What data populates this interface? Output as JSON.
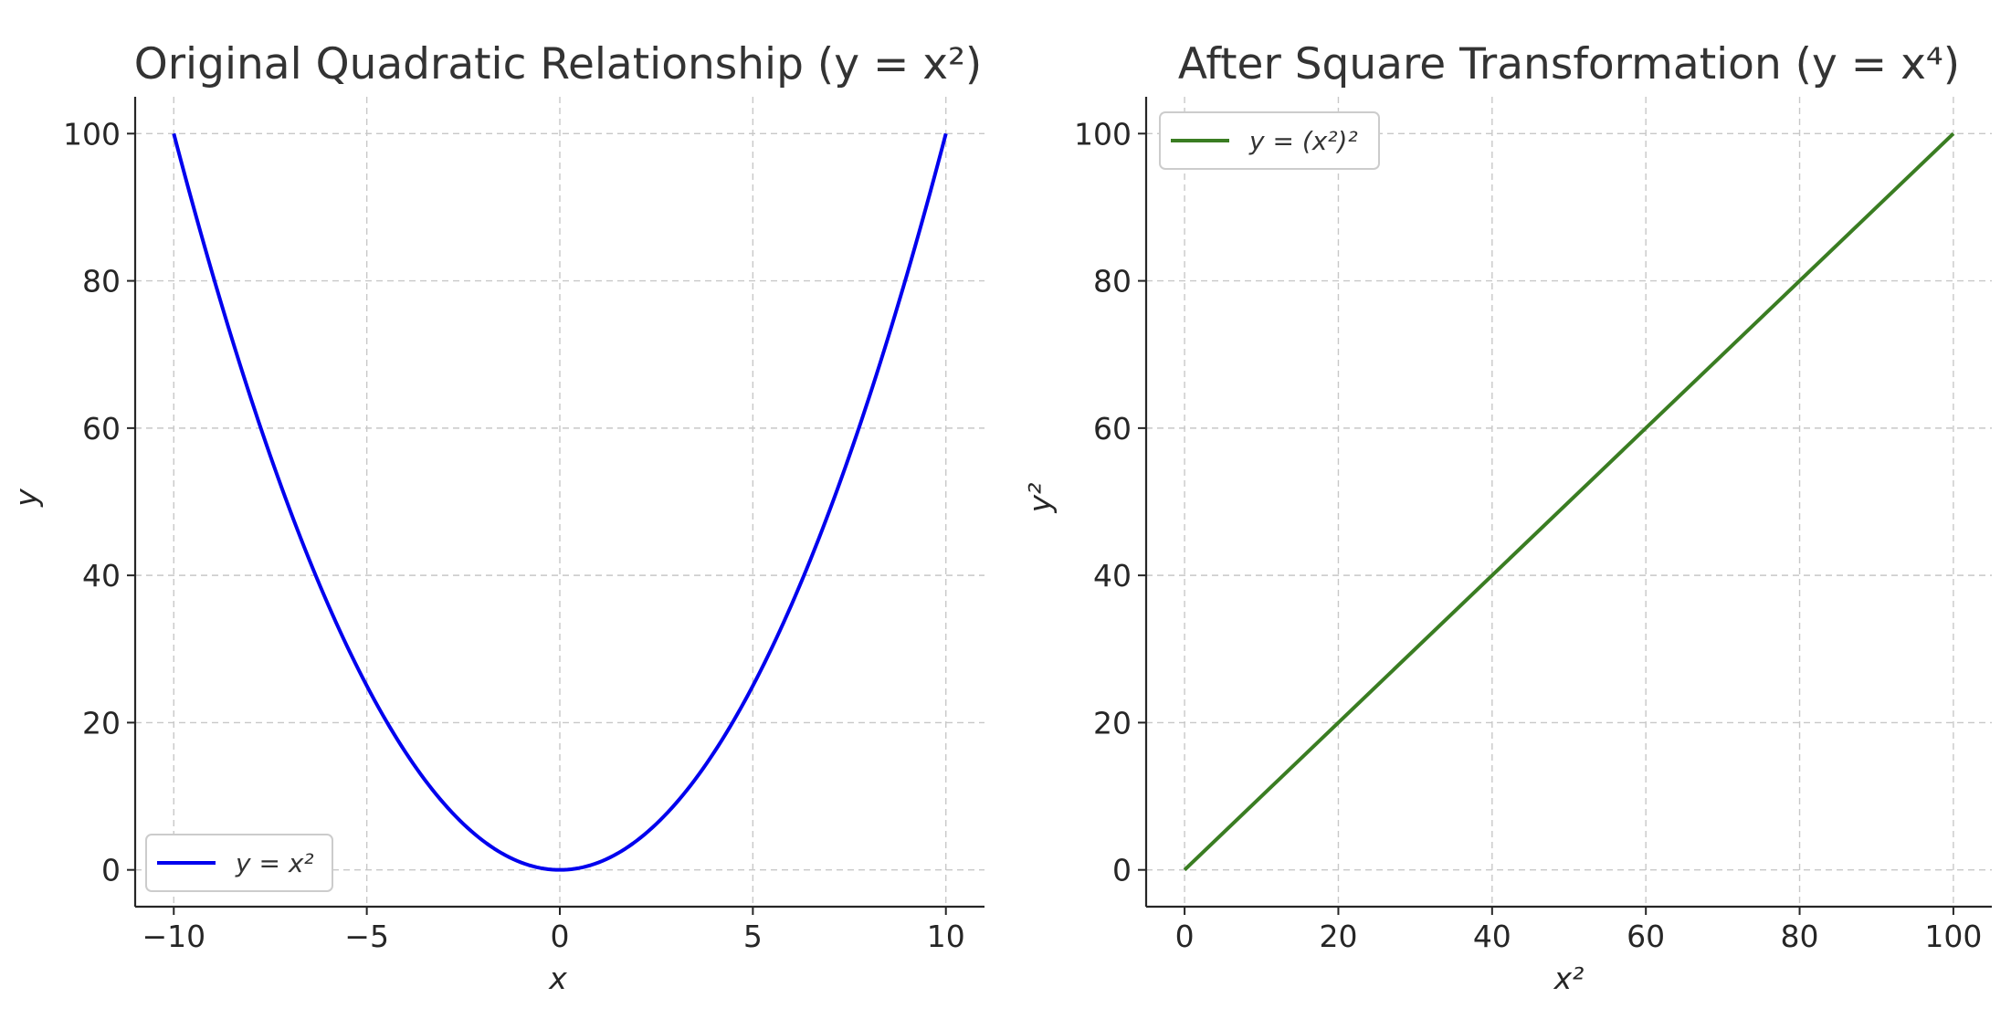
{
  "chart_data": [
    {
      "type": "line",
      "title": "Original Quadratic Relationship (y = x²)",
      "xlabel": "x",
      "ylabel": "y",
      "xlim": [
        -11,
        11
      ],
      "ylim": [
        -5,
        105
      ],
      "xticks": [
        -10,
        -5,
        0,
        5,
        10
      ],
      "xtick_labels": [
        "−10",
        "−5",
        "0",
        "5",
        "10"
      ],
      "yticks": [
        0,
        20,
        40,
        60,
        80,
        100
      ],
      "ytick_labels": [
        "0",
        "20",
        "40",
        "60",
        "80",
        "100"
      ],
      "grid": true,
      "legend_position": "lower-left",
      "series": [
        {
          "name": "y = x²",
          "color": "#0000ee",
          "x": [
            -10,
            -9,
            -8,
            -7,
            -6,
            -5,
            -4,
            -3,
            -2,
            -1,
            0,
            1,
            2,
            3,
            4,
            5,
            6,
            7,
            8,
            9,
            10
          ],
          "y": [
            100,
            81,
            64,
            49,
            36,
            25,
            16,
            9,
            4,
            1,
            0,
            1,
            4,
            9,
            16,
            25,
            36,
            49,
            64,
            81,
            100
          ]
        }
      ]
    },
    {
      "type": "line",
      "title": "After Square Transformation (y = x⁴)",
      "xlabel": "x²",
      "ylabel": "y²",
      "xlim": [
        -5,
        105
      ],
      "ylim": [
        -5,
        105
      ],
      "xticks": [
        0,
        20,
        40,
        60,
        80,
        100
      ],
      "xtick_labels": [
        "0",
        "20",
        "40",
        "60",
        "80",
        "100"
      ],
      "yticks": [
        0,
        20,
        40,
        60,
        80,
        100
      ],
      "ytick_labels": [
        "0",
        "20",
        "40",
        "60",
        "80",
        "100"
      ],
      "grid": true,
      "legend_position": "top-left",
      "series": [
        {
          "name": "y = (x²)²",
          "color": "#3a7d22",
          "x": [
            0,
            20,
            40,
            60,
            80,
            100
          ],
          "y": [
            0,
            20,
            40,
            60,
            80,
            100
          ]
        }
      ]
    }
  ]
}
